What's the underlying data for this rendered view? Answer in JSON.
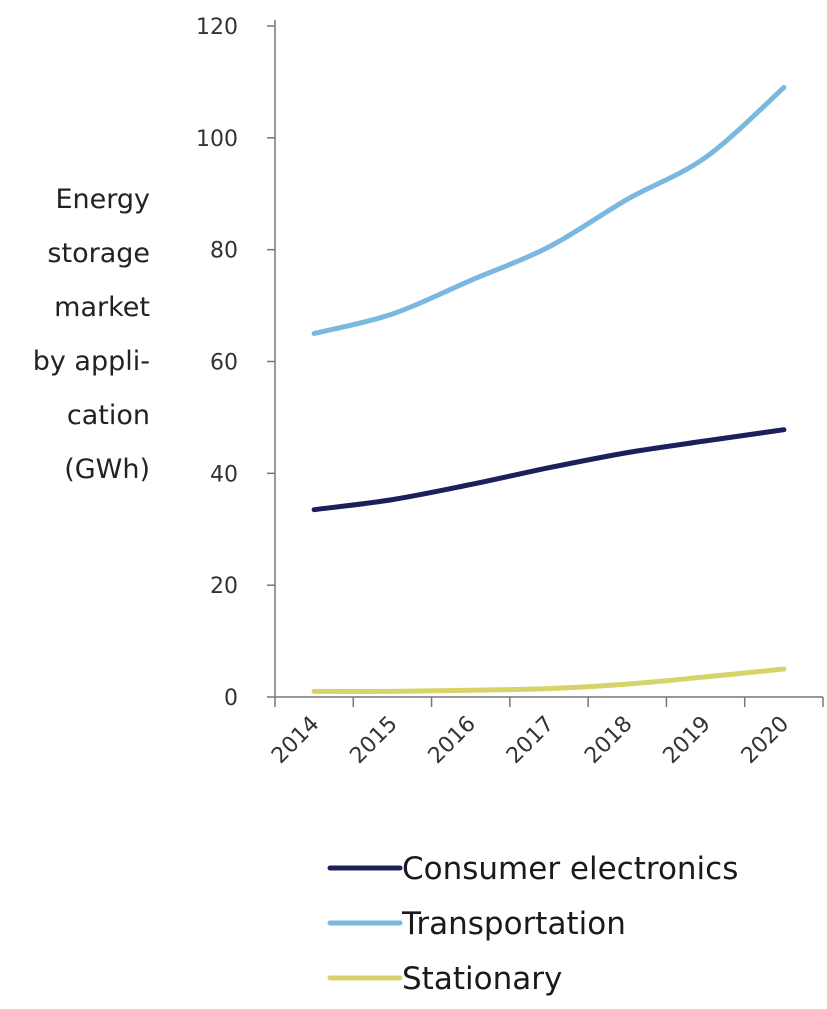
{
  "chart_data": {
    "type": "line",
    "title": "",
    "ylabel": "Energy storage market by appli- cation (GWh)",
    "ylabel_lines": [
      "Energy",
      "storage",
      "market",
      "by appli-",
      "cation",
      "(GWh)"
    ],
    "xlabel": "",
    "x": [
      "2014",
      "2015",
      "2016",
      "2017",
      "2018",
      "2019",
      "2020"
    ],
    "ylim": [
      0,
      120
    ],
    "yticks": [
      "0",
      "20",
      "40",
      "60",
      "80",
      "100",
      "120"
    ],
    "grid": false,
    "legend_position": "bottom",
    "series": [
      {
        "name": "Consumer electronics",
        "color": "#1b1f5c",
        "values": [
          33.5,
          35.3,
          38.0,
          41.0,
          43.7,
          45.8,
          47.8
        ]
      },
      {
        "name": "Transportation",
        "color": "#7ab8e0",
        "values": [
          65.0,
          68.5,
          74.5,
          80.5,
          89.0,
          96.5,
          109.0
        ]
      },
      {
        "name": "Stationary",
        "color": "#d6d36a",
        "values": [
          1.0,
          1.0,
          1.2,
          1.5,
          2.3,
          3.6,
          5.0
        ]
      }
    ]
  }
}
